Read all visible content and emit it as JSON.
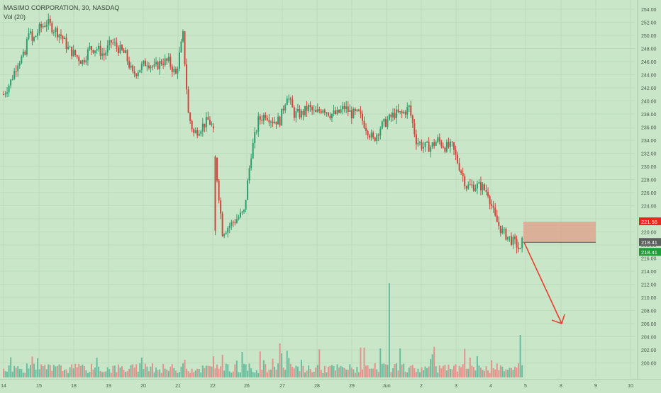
{
  "header": {
    "symbol_line": "MASIMO CORPORATION, 30, NASDAQ",
    "volume_line": "Vol (20)"
  },
  "colors": {
    "background": "#c9e6c9",
    "up": "#2e9e6f",
    "down": "#d0453c",
    "volume_up": "#6bbd9f",
    "volume_down": "#e3928c",
    "zone_fill": "#dea68f",
    "arrow": "#e8402e",
    "badge_red": "#e8261f",
    "badge_gray": "#5b5f5b",
    "badge_green": "#1f9d3a"
  },
  "chart_data": {
    "type": "candlestick",
    "y_axis": {
      "range": [
        198,
        255
      ],
      "ticks": [
        "200.00",
        "202.00",
        "204.00",
        "206.00",
        "208.00",
        "210.00",
        "212.00",
        "214.00",
        "216.00",
        "218.00",
        "220.00",
        "222.00",
        "224.00",
        "226.00",
        "228.00",
        "230.00",
        "232.00",
        "234.00",
        "236.00",
        "238.00",
        "240.00",
        "242.00",
        "244.00",
        "246.00",
        "248.00",
        "250.00",
        "252.00",
        "254.00"
      ]
    },
    "x_axis": {
      "labels": [
        "14",
        "15",
        "18",
        "19",
        "20",
        "21",
        "22",
        "26",
        "27",
        "28",
        "29",
        "Jun",
        "2",
        "3",
        "4",
        "5",
        "8",
        "9",
        "10"
      ]
    },
    "anchors": [
      [
        0,
        241
      ],
      [
        4,
        243
      ],
      [
        8,
        246
      ],
      [
        12,
        247
      ],
      [
        14,
        251
      ],
      [
        16,
        249
      ],
      [
        20,
        251
      ],
      [
        24,
        252
      ],
      [
        28,
        251
      ],
      [
        32,
        250
      ],
      [
        36,
        248
      ],
      [
        40,
        247
      ],
      [
        44,
        246
      ],
      [
        48,
        248
      ],
      [
        52,
        248
      ],
      [
        56,
        247
      ],
      [
        60,
        249
      ],
      [
        64,
        248
      ],
      [
        68,
        247
      ],
      [
        72,
        244
      ],
      [
        76,
        245
      ],
      [
        80,
        246
      ],
      [
        84,
        245
      ],
      [
        88,
        246
      ],
      [
        92,
        246
      ],
      [
        96,
        244
      ],
      [
        100,
        250
      ],
      [
        103,
        238
      ],
      [
        106,
        235
      ],
      [
        110,
        236
      ],
      [
        114,
        237
      ],
      [
        117,
        236
      ],
      [
        118,
        231
      ],
      [
        122,
        220
      ],
      [
        126,
        221
      ],
      [
        130,
        222
      ],
      [
        134,
        223
      ],
      [
        138,
        232
      ],
      [
        142,
        237
      ],
      [
        146,
        238
      ],
      [
        150,
        237
      ],
      [
        154,
        237
      ],
      [
        158,
        241
      ],
      [
        162,
        238
      ],
      [
        166,
        238
      ],
      [
        170,
        239
      ],
      [
        174,
        238
      ],
      [
        178,
        239
      ],
      [
        182,
        238
      ],
      [
        186,
        238
      ],
      [
        190,
        239
      ],
      [
        194,
        238
      ],
      [
        198,
        238
      ],
      [
        202,
        236
      ],
      [
        206,
        234
      ],
      [
        210,
        236
      ],
      [
        214,
        237
      ],
      [
        218,
        238
      ],
      [
        222,
        238
      ],
      [
        226,
        239
      ],
      [
        230,
        234
      ],
      [
        234,
        233
      ],
      [
        238,
        233
      ],
      [
        242,
        234
      ],
      [
        246,
        233
      ],
      [
        250,
        233
      ],
      [
        254,
        230
      ],
      [
        258,
        227
      ],
      [
        262,
        227
      ],
      [
        266,
        227
      ],
      [
        270,
        226
      ],
      [
        274,
        222
      ],
      [
        278,
        220
      ],
      [
        282,
        219
      ],
      [
        286,
        218
      ],
      [
        288,
        217
      ],
      [
        289,
        218.4
      ]
    ],
    "zone": {
      "from": 218.41,
      "to": 221.56
    },
    "projection": {
      "from": 218.4,
      "to": 206
    },
    "price_labels": [
      {
        "value": "221.56",
        "price": 221.56,
        "color": "#e8261f"
      },
      {
        "value": "218.41",
        "price": 218.41,
        "color": "#5b5f5b"
      },
      {
        "value": "218.41",
        "price": 216.9,
        "color": "#1f9d3a"
      }
    ]
  }
}
